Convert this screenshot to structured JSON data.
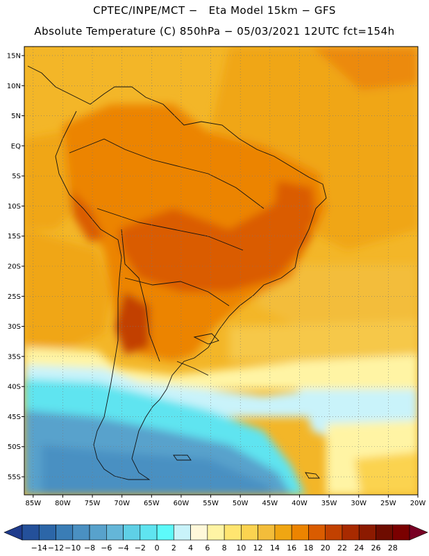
{
  "header": {
    "line1": "CPTEC/INPE/MCT −   Eta Model 15km − GFS",
    "line2": "Absolute Temperature (C) 850hPa − 05/03/2021 12UTC fct=154h"
  },
  "map": {
    "lat_labels": [
      "15N",
      "10N",
      "5N",
      "EQ",
      "5S",
      "10S",
      "15S",
      "20S",
      "25S",
      "30S",
      "35S",
      "40S",
      "45S",
      "50S",
      "55S"
    ],
    "lat_values": [
      15,
      10,
      5,
      0,
      -5,
      -10,
      -15,
      -20,
      -25,
      -30,
      -35,
      -40,
      -45,
      -50,
      -55
    ],
    "lon_labels": [
      "85W",
      "80W",
      "75W",
      "70W",
      "65W",
      "60W",
      "55W",
      "50W",
      "45W",
      "40W",
      "35W",
      "30W",
      "25W",
      "20W"
    ],
    "lon_values": [
      -85,
      -80,
      -75,
      -70,
      -65,
      -60,
      -55,
      -50,
      -45,
      -40,
      -35,
      -30,
      -25,
      -20
    ],
    "lon_range": [
      -86.5,
      -20
    ],
    "lat_range": [
      -58,
      16.5
    ]
  },
  "colorbar": {
    "labels": [
      "−14",
      "−12",
      "−10",
      "−8",
      "−6",
      "−4",
      "−2",
      "0",
      "2",
      "4",
      "6",
      "8",
      "10",
      "12",
      "14",
      "16",
      "18",
      "20",
      "22",
      "24",
      "26",
      "28"
    ],
    "colors": [
      "#1f3b8c",
      "#24509a",
      "#2c66a8",
      "#3a7db6",
      "#4a90c2",
      "#58a2cc",
      "#64b6d8",
      "#5fd0e6",
      "#5fe4f0",
      "#5dfafa",
      "#c9f3fa",
      "#fff8da",
      "#fff4a4",
      "#ffe570",
      "#fbd350",
      "#f3bd3a",
      "#f0a612",
      "#ec8400",
      "#da5c00",
      "#c24100",
      "#a82a00",
      "#8c1a00",
      "#6e0c00",
      "#7a0000",
      "#780024"
    ]
  }
}
